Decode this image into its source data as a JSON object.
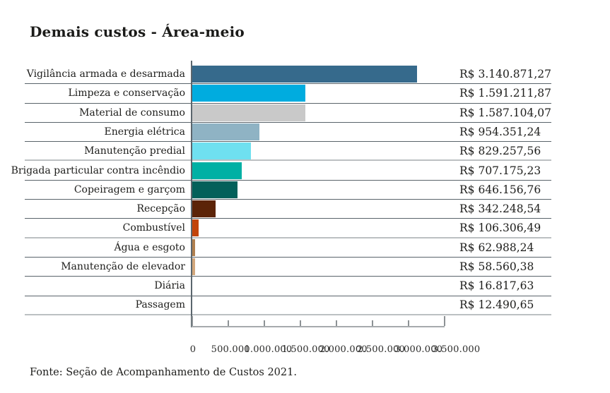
{
  "title": "Demais custos - Área-meio",
  "source_note": "Fonte: Seção de Acompanhamento de Custos 2021.",
  "chart_data": {
    "type": "bar",
    "orientation": "horizontal",
    "title": "Demais custos - Área-meio",
    "categories": [
      "Vigilância armada e desarmada",
      "Limpeza e conservação",
      "Material de consumo",
      "Energia elétrica",
      "Manutenção predial",
      "Brigada particular contra incêndio",
      "Copeiragem e garçom",
      "Recepção",
      "Combustível",
      "Água e esgoto",
      "Manutenção de elevador",
      "Diária",
      "Passagem"
    ],
    "values": [
      3140871.27,
      1591211.87,
      1587104.07,
      954351.24,
      829257.56,
      707175.23,
      646156.76,
      342248.54,
      106306.49,
      62988.24,
      58560.38,
      16817.63,
      12490.65
    ],
    "value_labels": [
      "R$ 3.140.871,27",
      "R$ 1.591.211,87",
      "R$ 1.587.104,07",
      "R$ 954.351,24",
      "R$ 829.257,56",
      "R$ 707.175,23",
      "R$ 646.156,76",
      "R$ 342.248,54",
      "R$ 106.306,49",
      "R$ 62.988,24",
      "R$ 58.560,38",
      "R$ 16.817,63",
      "R$ 12.490,65"
    ],
    "bar_colors": [
      "#366a8c",
      "#00acdf",
      "#c9c9c9",
      "#8fb3c4",
      "#6fe0f0",
      "#00b0a4",
      "#03605a",
      "#5c2408",
      "#c2440a",
      "#b07f4e",
      "#d2a77c",
      "#ee7f22",
      "#e03c31"
    ],
    "xlim": [
      0,
      3500000
    ],
    "x_tick_labels": [
      "0",
      "500.000",
      "1.000.000",
      "1.500.000",
      "2.000.000",
      "2.500.000",
      "3.000.000",
      "3.500.000"
    ],
    "currency": "R$",
    "legend": "none",
    "grid": "row-separators"
  }
}
